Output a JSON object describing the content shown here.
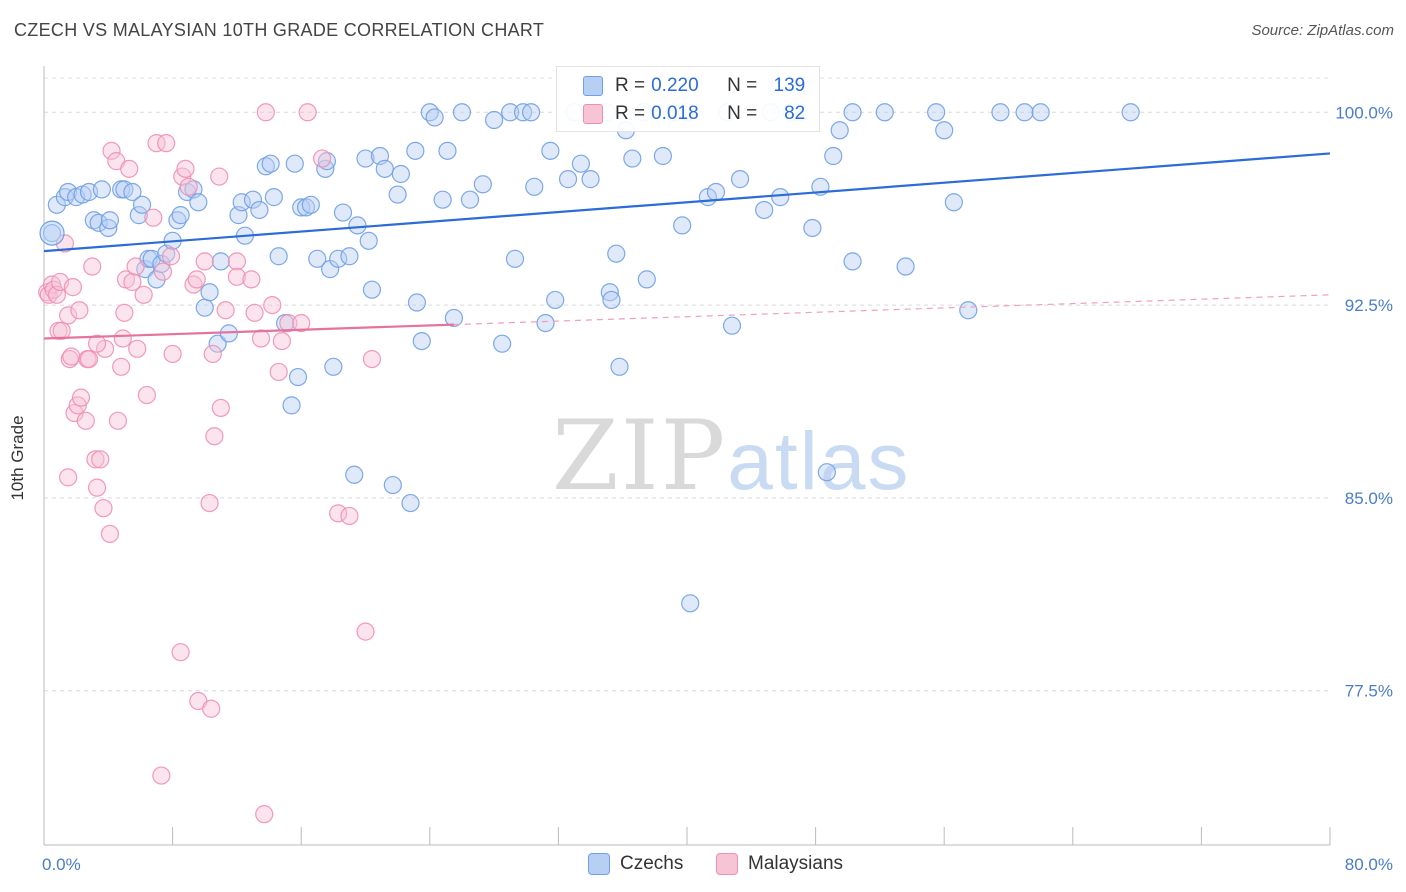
{
  "header": {
    "title": "CZECH VS MALAYSIAN 10TH GRADE CORRELATION CHART",
    "source": "Source: ZipAtlas.com"
  },
  "watermark": {
    "zip": "ZIP",
    "atlas": "atlas"
  },
  "legend_top": {
    "rows": [
      {
        "key": "R =",
        "r": "0.220",
        "nkey": "N =",
        "n": "139",
        "color": "#6fa0e6",
        "fill": "#b7cff3"
      },
      {
        "key": "R =",
        "r": "0.018",
        "nkey": "N =",
        "n": "82",
        "color": "#ef8fb0",
        "fill": "#f7c4d6"
      }
    ]
  },
  "legend_bottom": [
    {
      "label": "Czechs",
      "color": "#6fa0e6",
      "fill": "#b7cff3"
    },
    {
      "label": "Malaysians",
      "color": "#ef8fb0",
      "fill": "#f7c4d6"
    }
  ],
  "chart_data": {
    "type": "scatter",
    "title": "CZECH VS MALAYSIAN 10TH GRADE CORRELATION CHART",
    "xlabel": "",
    "ylabel": "10th Grade",
    "xlim": [
      0,
      80
    ],
    "ylim": [
      71.5,
      101.8
    ],
    "x_tick_labels": [
      {
        "value": 0,
        "label": "0.0%"
      },
      {
        "value": 80,
        "label": "80.0%"
      }
    ],
    "y_tick_labels": [
      {
        "value": 100,
        "label": "100.0%"
      },
      {
        "value": 92.5,
        "label": "92.5%"
      },
      {
        "value": 85,
        "label": "85.0%"
      },
      {
        "value": 77.5,
        "label": "77.5%"
      }
    ],
    "x_minor_ticks": [
      0,
      8,
      16,
      24,
      32,
      40,
      48,
      56,
      64,
      72,
      80
    ],
    "series": [
      {
        "name": "Czechs",
        "color": "#6fa0e6",
        "fill": "#b7cff3",
        "trend": {
          "x": [
            0,
            80
          ],
          "y": [
            94.6,
            98.4
          ],
          "dash_from": null
        },
        "points": [
          [
            0.5,
            95.3
          ],
          [
            0.8,
            96.4
          ],
          [
            1.3,
            96.7
          ],
          [
            1.5,
            96.9
          ],
          [
            2.0,
            96.7
          ],
          [
            2.4,
            96.8
          ],
          [
            2.8,
            96.9
          ],
          [
            3.1,
            95.8
          ],
          [
            3.4,
            95.7
          ],
          [
            3.6,
            97.0
          ],
          [
            4.0,
            95.5
          ],
          [
            4.1,
            95.8
          ],
          [
            4.8,
            97.0
          ],
          [
            5.0,
            97.0
          ],
          [
            5.5,
            96.9
          ],
          [
            5.9,
            96.0
          ],
          [
            6.1,
            96.4
          ],
          [
            6.3,
            93.9
          ],
          [
            6.5,
            94.3
          ],
          [
            6.7,
            94.3
          ],
          [
            7.0,
            93.5
          ],
          [
            7.3,
            94.1
          ],
          [
            7.6,
            94.5
          ],
          [
            8.0,
            95.0
          ],
          [
            8.3,
            95.8
          ],
          [
            8.5,
            96.0
          ],
          [
            8.9,
            96.9
          ],
          [
            9.3,
            97.0
          ],
          [
            9.6,
            96.5
          ],
          [
            10.0,
            92.4
          ],
          [
            10.3,
            93.0
          ],
          [
            10.8,
            91.0
          ],
          [
            11.0,
            94.2
          ],
          [
            11.5,
            91.4
          ],
          [
            12.1,
            96.0
          ],
          [
            12.3,
            96.5
          ],
          [
            12.5,
            95.2
          ],
          [
            13.0,
            96.6
          ],
          [
            13.4,
            96.2
          ],
          [
            13.8,
            97.9
          ],
          [
            14.1,
            98.0
          ],
          [
            14.3,
            96.7
          ],
          [
            14.6,
            94.4
          ],
          [
            15.0,
            91.8
          ],
          [
            15.4,
            88.6
          ],
          [
            15.6,
            98.0
          ],
          [
            15.8,
            89.7
          ],
          [
            16.0,
            96.3
          ],
          [
            16.3,
            96.3
          ],
          [
            16.6,
            96.4
          ],
          [
            17.0,
            94.3
          ],
          [
            17.5,
            97.8
          ],
          [
            17.6,
            98.1
          ],
          [
            17.8,
            93.9
          ],
          [
            18.0,
            90.1
          ],
          [
            18.3,
            94.3
          ],
          [
            18.6,
            96.1
          ],
          [
            19.0,
            94.4
          ],
          [
            19.3,
            85.9
          ],
          [
            19.5,
            95.6
          ],
          [
            20.0,
            98.2
          ],
          [
            20.2,
            95.0
          ],
          [
            20.4,
            93.1
          ],
          [
            20.9,
            98.3
          ],
          [
            21.2,
            97.8
          ],
          [
            21.7,
            85.5
          ],
          [
            22.0,
            96.8
          ],
          [
            22.2,
            97.6
          ],
          [
            22.8,
            84.8
          ],
          [
            23.1,
            98.5
          ],
          [
            23.2,
            92.6
          ],
          [
            23.5,
            91.1
          ],
          [
            24.0,
            100.0
          ],
          [
            24.3,
            99.8
          ],
          [
            24.8,
            96.6
          ],
          [
            25.1,
            98.5
          ],
          [
            25.5,
            92.0
          ],
          [
            26.0,
            100.0
          ],
          [
            26.5,
            96.6
          ],
          [
            27.3,
            97.2
          ],
          [
            28.0,
            99.7
          ],
          [
            28.5,
            91.0
          ],
          [
            29.0,
            100.0
          ],
          [
            29.3,
            94.3
          ],
          [
            29.8,
            100.0
          ],
          [
            30.3,
            100.0
          ],
          [
            30.5,
            97.1
          ],
          [
            31.2,
            91.8
          ],
          [
            31.5,
            98.5
          ],
          [
            31.8,
            92.7
          ],
          [
            32.6,
            97.4
          ],
          [
            33.0,
            100.0
          ],
          [
            33.4,
            98.0
          ],
          [
            34.0,
            97.4
          ],
          [
            35.0,
            100.0
          ],
          [
            35.2,
            93.0
          ],
          [
            35.3,
            92.7
          ],
          [
            35.6,
            94.5
          ],
          [
            35.8,
            90.1
          ],
          [
            36.2,
            99.3
          ],
          [
            36.6,
            98.2
          ],
          [
            37.3,
            100.0
          ],
          [
            37.5,
            93.5
          ],
          [
            38.5,
            98.3
          ],
          [
            39.2,
            100.0
          ],
          [
            39.7,
            95.6
          ],
          [
            40.0,
            100.0
          ],
          [
            40.2,
            80.9
          ],
          [
            41.3,
            96.7
          ],
          [
            41.8,
            96.9
          ],
          [
            42.5,
            100.0
          ],
          [
            42.8,
            91.7
          ],
          [
            43.3,
            97.4
          ],
          [
            44.8,
            96.2
          ],
          [
            45.2,
            100.0
          ],
          [
            45.8,
            96.7
          ],
          [
            46.5,
            100.0
          ],
          [
            47.0,
            100.0
          ],
          [
            47.8,
            95.5
          ],
          [
            48.3,
            97.1
          ],
          [
            48.7,
            86.0
          ],
          [
            49.1,
            98.3
          ],
          [
            49.5,
            99.3
          ],
          [
            50.3,
            100.0
          ],
          [
            50.3,
            94.2
          ],
          [
            52.3,
            100.0
          ],
          [
            53.6,
            94.0
          ],
          [
            55.5,
            100.0
          ],
          [
            56.0,
            99.3
          ],
          [
            56.6,
            96.5
          ],
          [
            57.5,
            92.3
          ],
          [
            59.5,
            100.0
          ],
          [
            61.0,
            100.0
          ],
          [
            62.0,
            100.0
          ],
          [
            67.6,
            100.0
          ]
        ]
      },
      {
        "name": "Malaysians",
        "color": "#ef8fb0",
        "fill": "#f7c4d6",
        "trend": {
          "x": [
            0,
            80
          ],
          "y": [
            91.2,
            92.9
          ],
          "dash_from": 25.5
        },
        "points": [
          [
            0.2,
            93.0
          ],
          [
            0.3,
            92.9
          ],
          [
            0.5,
            93.3
          ],
          [
            0.6,
            93.1
          ],
          [
            0.8,
            92.9
          ],
          [
            0.9,
            91.5
          ],
          [
            1.0,
            93.4
          ],
          [
            1.1,
            91.5
          ],
          [
            1.3,
            94.9
          ],
          [
            1.5,
            92.1
          ],
          [
            1.5,
            85.8
          ],
          [
            1.6,
            90.4
          ],
          [
            1.7,
            90.5
          ],
          [
            1.8,
            93.2
          ],
          [
            1.9,
            88.3
          ],
          [
            2.1,
            88.6
          ],
          [
            2.2,
            92.3
          ],
          [
            2.3,
            88.9
          ],
          [
            2.6,
            88.0
          ],
          [
            2.7,
            90.4
          ],
          [
            2.8,
            90.4
          ],
          [
            3.0,
            94.0
          ],
          [
            3.2,
            86.5
          ],
          [
            3.3,
            85.4
          ],
          [
            3.5,
            86.5
          ],
          [
            3.7,
            84.6
          ],
          [
            3.8,
            90.8
          ],
          [
            4.1,
            83.6
          ],
          [
            4.2,
            98.5
          ],
          [
            4.5,
            98.1
          ],
          [
            4.6,
            88.0
          ],
          [
            4.8,
            90.1
          ],
          [
            4.9,
            91.2
          ],
          [
            5.0,
            92.2
          ],
          [
            5.1,
            93.5
          ],
          [
            5.3,
            97.8
          ],
          [
            5.5,
            93.4
          ],
          [
            5.7,
            94.0
          ],
          [
            5.8,
            90.8
          ],
          [
            6.2,
            92.9
          ],
          [
            6.4,
            89.0
          ],
          [
            6.8,
            95.9
          ],
          [
            7.0,
            98.8
          ],
          [
            7.4,
            93.8
          ],
          [
            7.6,
            98.8
          ],
          [
            7.9,
            94.4
          ],
          [
            8.0,
            90.6
          ],
          [
            8.5,
            79.0
          ],
          [
            8.6,
            97.5
          ],
          [
            8.8,
            97.8
          ],
          [
            9.0,
            97.1
          ],
          [
            9.3,
            93.3
          ],
          [
            9.5,
            93.5
          ],
          [
            9.6,
            77.1
          ],
          [
            10.0,
            94.2
          ],
          [
            10.3,
            84.8
          ],
          [
            10.5,
            90.6
          ],
          [
            10.6,
            87.4
          ],
          [
            10.9,
            97.5
          ],
          [
            11.0,
            88.5
          ],
          [
            11.3,
            92.3
          ],
          [
            12.0,
            94.2
          ],
          [
            12.0,
            93.6
          ],
          [
            12.9,
            93.5
          ],
          [
            13.1,
            92.2
          ],
          [
            13.5,
            91.2
          ],
          [
            13.8,
            100.0
          ],
          [
            14.2,
            92.5
          ],
          [
            14.6,
            89.9
          ],
          [
            14.8,
            91.1
          ],
          [
            15.2,
            91.8
          ],
          [
            16.0,
            91.8
          ],
          [
            16.4,
            100.0
          ],
          [
            17.3,
            98.2
          ],
          [
            18.3,
            84.4
          ],
          [
            19.0,
            84.3
          ],
          [
            20.0,
            79.8
          ],
          [
            20.4,
            90.4
          ],
          [
            7.3,
            74.2
          ],
          [
            10.4,
            76.8
          ],
          [
            13.7,
            72.7
          ],
          [
            3.3,
            91.0
          ]
        ]
      }
    ]
  }
}
